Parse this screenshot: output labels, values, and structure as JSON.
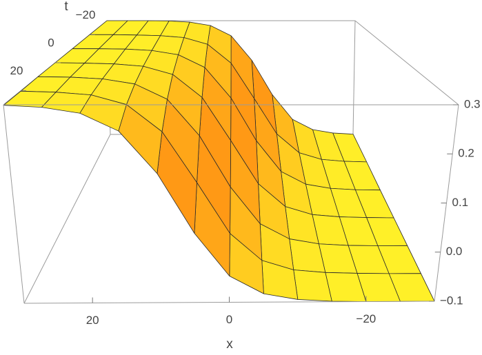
{
  "chart_data": {
    "type": "surface",
    "xlabel": "x",
    "ylabel": "t",
    "x": [
      -30,
      -25,
      -20,
      -15,
      -10,
      -5,
      0,
      5,
      10,
      15,
      20,
      25,
      30
    ],
    "t": [
      -30,
      -20,
      -10,
      0,
      10,
      20,
      30
    ],
    "z": [
      [
        -0.099,
        -0.095,
        -0.083,
        -0.047,
        0.04,
        0.161,
        0.247,
        0.283,
        0.295,
        0.299,
        0.3,
        0.3,
        0.3
      ],
      [
        -0.099,
        -0.097,
        -0.091,
        -0.07,
        -0.011,
        0.1,
        0.211,
        0.27,
        0.291,
        0.297,
        0.299,
        0.3,
        0.3
      ],
      [
        -0.1,
        -0.099,
        -0.095,
        -0.083,
        -0.047,
        0.04,
        0.161,
        0.247,
        0.283,
        0.295,
        0.299,
        0.3,
        0.3
      ],
      [
        -0.1,
        -0.099,
        -0.097,
        -0.091,
        -0.07,
        -0.011,
        0.1,
        0.211,
        0.27,
        0.291,
        0.297,
        0.299,
        0.3
      ],
      [
        -0.1,
        -0.1,
        -0.099,
        -0.095,
        -0.083,
        -0.047,
        0.04,
        0.161,
        0.247,
        0.283,
        0.295,
        0.299,
        0.3
      ],
      [
        -0.1,
        -0.1,
        -0.099,
        -0.097,
        -0.091,
        -0.07,
        -0.011,
        0.1,
        0.211,
        0.27,
        0.291,
        0.297,
        0.299
      ],
      [
        -0.1,
        -0.1,
        -0.1,
        -0.099,
        -0.095,
        -0.083,
        -0.047,
        0.04,
        0.161,
        0.247,
        0.283,
        0.295,
        0.299
      ]
    ],
    "xlim": [
      -30,
      30
    ],
    "tlim": [
      -30,
      30
    ],
    "zlim": [
      -0.1,
      0.3
    ],
    "xticks": [
      {
        "value": -20,
        "label": "−20"
      },
      0,
      20
    ],
    "tticks": [
      {
        "value": -20,
        "label": "−20"
      },
      0,
      20
    ],
    "zticks": [
      {
        "value": -0.1,
        "label": "−0.1"
      },
      {
        "value": 0,
        "label": "0.0"
      },
      0.1,
      0.2,
      0.3
    ],
    "colors": {
      "flat": "#fff028",
      "steep": "#ff9614",
      "mesh": "#2a2a2a",
      "box": "#9a9a9a"
    }
  }
}
